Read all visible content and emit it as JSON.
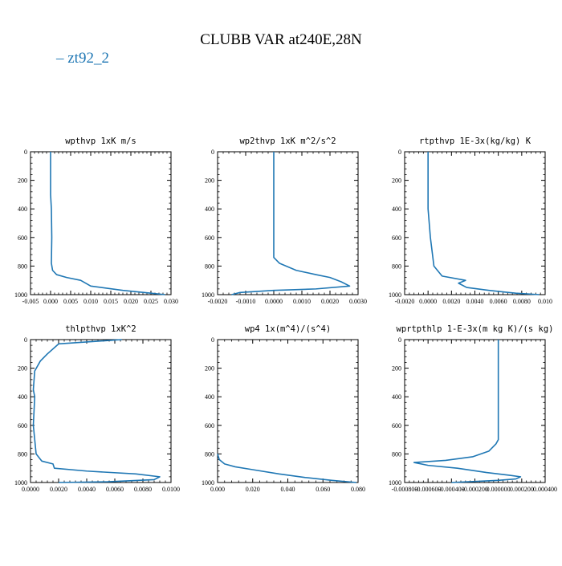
{
  "page": {
    "title": "CLUBB VAR at240E,28N",
    "legend": {
      "label": "zt92_2",
      "color": "#1f77b4",
      "placement": "top-left"
    }
  },
  "chart_data": [
    {
      "type": "line",
      "title": "wpthvp 1xK m/s",
      "xlim": [
        -0.005,
        0.03
      ],
      "ylim": [
        1000,
        0
      ],
      "xticks": [
        "-0.005",
        "0.000",
        "0.005",
        "0.010",
        "0.015",
        "0.020",
        "0.025",
        "0.030"
      ],
      "yticks": [
        "0",
        "200",
        "400",
        "600",
        "800",
        "1000"
      ],
      "series": [
        {
          "name": "zt92_2",
          "x": [
            0.0,
            0.0,
            0.0002,
            0.0003,
            0.0002,
            0.0005,
            0.0015,
            0.004,
            0.0075,
            0.01,
            0.018,
            0.025,
            0.0285
          ],
          "y": [
            0,
            300,
            400,
            600,
            780,
            830,
            860,
            880,
            900,
            940,
            970,
            990,
            1000
          ]
        }
      ]
    },
    {
      "type": "line",
      "title": "wp2thvp 1xK m^2/s^2",
      "xlim": [
        -0.002,
        0.003
      ],
      "ylim": [
        1000,
        0
      ],
      "xticks": [
        "-0.0020",
        "-0.0010",
        "0.0000",
        "0.0010",
        "0.0020",
        "0.0030"
      ],
      "yticks": [
        "0",
        "200",
        "400",
        "600",
        "800",
        "1000"
      ],
      "series": [
        {
          "name": "zt92_2",
          "x": [
            0.0,
            0.0,
            0.0,
            0.0002,
            0.0008,
            0.0015,
            0.002,
            0.0024,
            0.0027,
            0.0015,
            0.0,
            -0.0012,
            -0.0015
          ],
          "y": [
            0,
            500,
            740,
            780,
            830,
            860,
            880,
            910,
            940,
            960,
            970,
            985,
            1000
          ]
        }
      ]
    },
    {
      "type": "line",
      "title": "rtpthvp 1E-3x(kg/kg) K",
      "xlim": [
        -0.002,
        0.01
      ],
      "ylim": [
        1000,
        0
      ],
      "xticks": [
        "-0.0020",
        "0.0000",
        "0.0020",
        "0.0040",
        "0.0060",
        "0.0080",
        "0.010"
      ],
      "yticks": [
        "0",
        "200",
        "400",
        "600",
        "800",
        "1000"
      ],
      "series": [
        {
          "name": "zt92_2",
          "x": [
            0.0,
            0.0,
            0.0002,
            0.0005,
            0.0008,
            0.0012,
            0.0032,
            0.0026,
            0.0033,
            0.0052,
            0.0075,
            0.0095
          ],
          "y": [
            0,
            400,
            600,
            800,
            830,
            870,
            900,
            920,
            950,
            970,
            990,
            1000
          ]
        }
      ]
    },
    {
      "type": "line",
      "title": "thlpthvp 1xK^2",
      "xlim": [
        0.0,
        0.01
      ],
      "ylim": [
        1000,
        0
      ],
      "xticks": [
        "0.0000",
        "0.0020",
        "0.0040",
        "0.0060",
        "0.0080",
        "0.0100"
      ],
      "yticks": [
        "0",
        "200",
        "400",
        "600",
        "800",
        "1000"
      ],
      "series": [
        {
          "name": "zt92_2",
          "x": [
            0.0065,
            0.002,
            0.0012,
            0.0007,
            0.0003,
            0.0002,
            0.0003,
            0.0002,
            0.0003,
            0.0004,
            0.0008,
            0.0016,
            0.0017,
            0.004,
            0.0075,
            0.0092,
            0.0088,
            0.0055,
            0.002
          ],
          "y": [
            0,
            30,
            100,
            150,
            220,
            350,
            400,
            600,
            700,
            800,
            850,
            870,
            900,
            920,
            940,
            960,
            980,
            995,
            1000
          ]
        }
      ]
    },
    {
      "type": "line",
      "title": "wp4 1x(m^4)/(s^4)",
      "xlim": [
        0.0,
        0.08
      ],
      "ylim": [
        1000,
        0
      ],
      "xticks": [
        "0.000",
        "0.020",
        "0.040",
        "0.060",
        "0.080"
      ],
      "yticks": [
        "0",
        "200",
        "400",
        "600",
        "800",
        "1000"
      ],
      "series": [
        {
          "name": "zt92_2",
          "x": [
            0.0,
            0.001,
            0.004,
            0.01,
            0.02,
            0.035,
            0.05,
            0.065,
            0.079
          ],
          "y": [
            800,
            840,
            870,
            890,
            910,
            940,
            965,
            985,
            1000
          ]
        }
      ]
    },
    {
      "type": "line",
      "title": "wprtpthlp 1-E-3x(m kg K)/(s kg)",
      "xlim": [
        -0.0008,
        0.0004
      ],
      "ylim": [
        1000,
        0
      ],
      "xticks": [
        "-0.000800",
        "-0.000600",
        "-0.000400",
        "-0.000200",
        "0.000000",
        "0.000200",
        "0.000400"
      ],
      "yticks": [
        "0",
        "200",
        "400",
        "600",
        "800",
        "1000"
      ],
      "series": [
        {
          "name": "zt92_2",
          "x": [
            0.0,
            0.0,
            -2e-05,
            -8e-05,
            -0.00022,
            -0.00045,
            -0.00072,
            -0.0006,
            -0.00035,
            -0.0001,
            0.0001,
            0.00019,
            0.00015,
            0.0,
            -0.0004
          ],
          "y": [
            0,
            700,
            730,
            780,
            820,
            845,
            860,
            880,
            900,
            930,
            950,
            960,
            975,
            985,
            1000
          ]
        }
      ]
    }
  ]
}
